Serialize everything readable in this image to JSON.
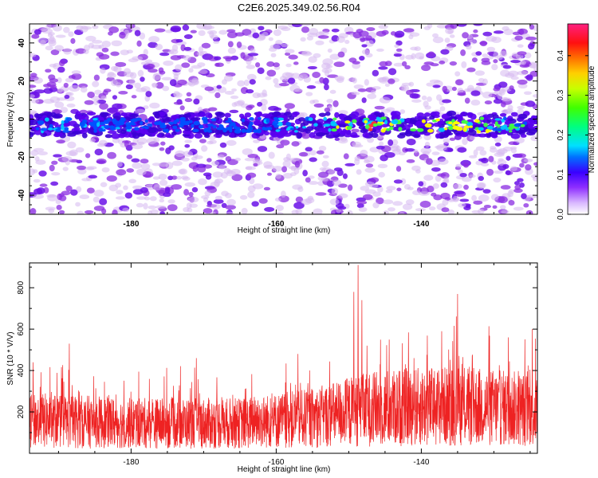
{
  "title": "C2E6.2025.349.02.56.R04",
  "chart_data": [
    {
      "type": "heatmap",
      "xlabel": "Height of straight line (km)",
      "ylabel": "Frequency (Hz)",
      "xlim": [
        -194,
        -124
      ],
      "ylim": [
        -50,
        50
      ],
      "xticks": [
        "-180",
        "-160",
        "-140"
      ],
      "xtick_values": [
        -180,
        -160,
        -140
      ],
      "yticks": [
        "40",
        "20",
        "0",
        "-20",
        "-40"
      ],
      "ytick_values": [
        40,
        20,
        0,
        -20,
        -40
      ],
      "colorbar": {
        "label": "Normalized spectral amplitude",
        "ticks": [
          "0.0",
          "0.1",
          "0.2",
          "0.3",
          "0.4"
        ],
        "tick_values": [
          0.0,
          0.1,
          0.2,
          0.3,
          0.4
        ],
        "range": [
          0.0,
          0.48
        ]
      },
      "band": {
        "center_hz": -3,
        "description_points": [
          {
            "x": -193,
            "amp": 0.14
          },
          {
            "x": -186,
            "amp": 0.12
          },
          {
            "x": -178,
            "amp": 0.1
          },
          {
            "x": -170,
            "amp": 0.09
          },
          {
            "x": -162,
            "amp": 0.1
          },
          {
            "x": -155,
            "amp": 0.18
          },
          {
            "x": -148,
            "amp": 0.35
          },
          {
            "x": -145,
            "amp": 0.3
          },
          {
            "x": -140,
            "amp": 0.28
          },
          {
            "x": -135,
            "amp": 0.3
          },
          {
            "x": -130,
            "amp": 0.25
          },
          {
            "x": -125,
            "amp": 0.18
          }
        ]
      },
      "colors": {
        "low": "#d6b8f0",
        "mid": "#8a2be2",
        "band": "#3b00d4",
        "hot1": "#00c8ff",
        "hot2": "#40ff40",
        "hot3": "#ffff00",
        "peak": "#ff3030"
      }
    },
    {
      "type": "line",
      "xlabel": "Height of straight line (km)",
      "ylabel": "SNR (10 * V/V)",
      "xlim": [
        -194,
        -124
      ],
      "ylim": [
        0,
        920
      ],
      "xticks": [
        "-180",
        "-160",
        "-140"
      ],
      "xtick_values": [
        -180,
        -160,
        -140
      ],
      "yticks": [
        "200",
        "400",
        "600",
        "800"
      ],
      "ytick_values": [
        200,
        400,
        600,
        800
      ],
      "series": [
        {
          "color": "#ee2222",
          "baseline_trend": [
            {
              "x": -194,
              "mean": 160
            },
            {
              "x": -180,
              "mean": 145
            },
            {
              "x": -165,
              "mean": 145
            },
            {
              "x": -155,
              "mean": 170
            },
            {
              "x": -150,
              "mean": 200
            },
            {
              "x": -145,
              "mean": 220
            },
            {
              "x": -135,
              "mean": 230
            },
            {
              "x": -124,
              "mean": 210
            }
          ],
          "peaks": [
            {
              "x": -193.5,
              "y": 440
            },
            {
              "x": -188.5,
              "y": 530
            },
            {
              "x": -171,
              "y": 460
            },
            {
              "x": -157,
              "y": 480
            },
            {
              "x": -149.3,
              "y": 780
            },
            {
              "x": -148.7,
              "y": 910
            },
            {
              "x": -148.2,
              "y": 740
            },
            {
              "x": -147.5,
              "y": 520
            },
            {
              "x": -141,
              "y": 460
            },
            {
              "x": -137.2,
              "y": 590
            },
            {
              "x": -135.0,
              "y": 770
            },
            {
              "x": -133,
              "y": 470
            },
            {
              "x": -128,
              "y": 560
            },
            {
              "x": -124.7,
              "y": 600
            }
          ]
        }
      ]
    }
  ]
}
